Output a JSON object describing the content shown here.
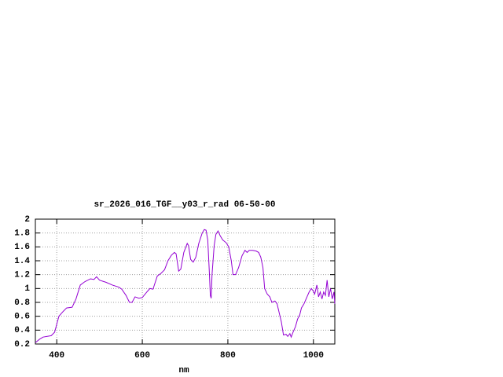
{
  "chart_data": {
    "type": "line",
    "title": "sr_2026_016_TGF__y03_r_rad 06-50-00",
    "xlabel": "nm",
    "x": [
      350,
      360,
      368,
      378,
      387,
      395,
      405,
      415,
      423,
      436,
      445,
      455,
      466,
      479,
      487,
      493,
      500,
      515,
      530,
      545,
      552,
      562,
      570,
      576,
      583,
      592,
      600,
      612,
      618,
      625,
      635,
      644,
      652,
      660,
      668,
      675,
      679,
      685,
      690,
      697,
      705,
      708,
      713,
      719,
      725,
      732,
      740,
      745,
      749,
      753,
      757,
      759,
      761,
      763,
      768,
      772,
      777,
      782,
      788,
      796,
      802,
      808,
      812,
      818,
      825,
      833,
      840,
      845,
      850,
      858,
      866,
      872,
      877,
      882,
      886,
      892,
      898,
      903,
      910,
      915,
      920,
      925,
      930,
      936,
      940,
      945,
      948,
      953,
      958,
      963,
      968,
      972,
      978,
      985,
      990,
      995,
      999,
      1003,
      1008,
      1012,
      1016,
      1020,
      1024,
      1028,
      1032,
      1036,
      1040,
      1044,
      1048,
      1050
    ],
    "series": [
      {
        "color": "#9400d3",
        "values": [
          0.22,
          0.27,
          0.3,
          0.31,
          0.32,
          0.37,
          0.6,
          0.67,
          0.72,
          0.73,
          0.85,
          1.05,
          1.1,
          1.14,
          1.13,
          1.17,
          1.12,
          1.09,
          1.05,
          1.02,
          0.99,
          0.9,
          0.8,
          0.8,
          0.88,
          0.86,
          0.87,
          0.96,
          1.0,
          0.99,
          1.18,
          1.22,
          1.27,
          1.4,
          1.48,
          1.52,
          1.5,
          1.25,
          1.28,
          1.52,
          1.65,
          1.62,
          1.42,
          1.38,
          1.45,
          1.65,
          1.8,
          1.85,
          1.84,
          1.7,
          1.2,
          0.9,
          0.86,
          1.2,
          1.62,
          1.78,
          1.83,
          1.76,
          1.7,
          1.66,
          1.6,
          1.4,
          1.2,
          1.2,
          1.3,
          1.47,
          1.55,
          1.52,
          1.55,
          1.55,
          1.54,
          1.52,
          1.45,
          1.3,
          1.0,
          0.92,
          0.88,
          0.8,
          0.82,
          0.78,
          0.65,
          0.52,
          0.33,
          0.34,
          0.31,
          0.35,
          0.3,
          0.38,
          0.45,
          0.56,
          0.62,
          0.72,
          0.78,
          0.88,
          0.95,
          1.0,
          0.97,
          0.92,
          1.05,
          0.88,
          0.95,
          0.85,
          0.95,
          0.9,
          1.12,
          0.88,
          1.0,
          0.85,
          0.95,
          0.78
        ]
      }
    ],
    "xlim": [
      350,
      1050
    ],
    "ylim": [
      0.2,
      2
    ],
    "xticks": [
      400,
      600,
      800,
      1000
    ],
    "yticks": [
      0.2,
      0.4,
      0.6,
      0.8,
      1,
      1.2,
      1.4,
      1.6,
      1.8,
      2
    ],
    "grid": true
  }
}
